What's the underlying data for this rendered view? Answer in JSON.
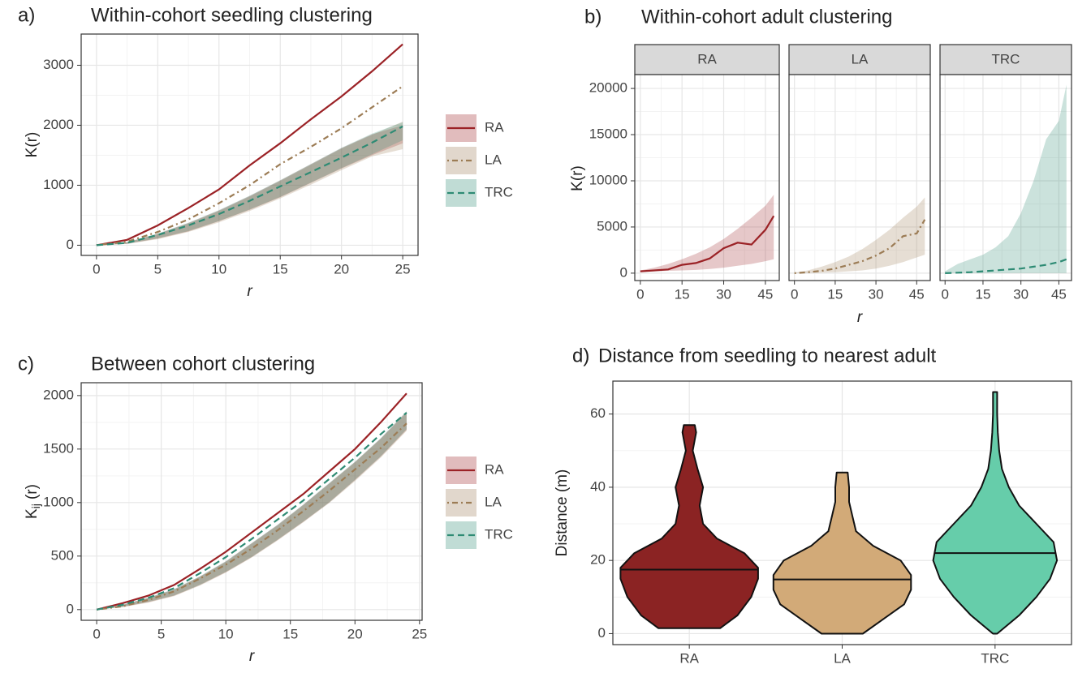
{
  "chart_data": [
    {
      "type": "line",
      "label": "a)",
      "title": "Within-cohort seedling clustering",
      "xlabel": "r",
      "ylabel": "K(r)",
      "x": [
        0,
        2.5,
        5,
        7.5,
        10,
        12.5,
        15,
        17.5,
        20,
        22.5,
        25
      ],
      "series": [
        {
          "name": "RA",
          "color": "#9b2226",
          "dash": "none",
          "values": [
            0,
            90,
            330,
            620,
            930,
            1330,
            1700,
            2100,
            2480,
            2900,
            3350
          ],
          "lower": [
            0,
            25,
            110,
            230,
            400,
            590,
            800,
            1040,
            1280,
            1500,
            1700
          ],
          "upper": [
            0,
            50,
            190,
            370,
            580,
            820,
            1080,
            1350,
            1620,
            1850,
            2000
          ]
        },
        {
          "name": "LA",
          "color": "#9c7c55",
          "dash": "2,4,7,4",
          "values": [
            0,
            60,
            220,
            430,
            700,
            1000,
            1350,
            1640,
            1950,
            2300,
            2650
          ],
          "lower": [
            0,
            20,
            100,
            220,
            380,
            570,
            780,
            1010,
            1250,
            1480,
            1600
          ],
          "upper": [
            0,
            48,
            185,
            360,
            570,
            810,
            1070,
            1340,
            1610,
            1840,
            2060
          ]
        },
        {
          "name": "TRC",
          "color": "#2e8b74",
          "dash": "8,5",
          "values": [
            0,
            40,
            170,
            330,
            520,
            740,
            980,
            1220,
            1460,
            1710,
            1980
          ],
          "lower": [
            0,
            25,
            115,
            235,
            405,
            595,
            805,
            1045,
            1285,
            1515,
            1750
          ],
          "upper": [
            0,
            50,
            195,
            375,
            585,
            825,
            1085,
            1355,
            1625,
            1860,
            2050
          ]
        }
      ],
      "xlim": [
        -1.25,
        26.25
      ],
      "xticks": [
        0,
        5,
        10,
        15,
        20,
        25
      ],
      "ylim": [
        -170,
        3520
      ],
      "yticks": [
        0,
        1000,
        2000,
        3000
      ],
      "grid": true,
      "legend": "right"
    },
    {
      "type": "line",
      "facet": true,
      "label": "b)",
      "title": "Within-cohort adult clustering",
      "xlabel": "r",
      "ylabel": "K(r)",
      "x": [
        0,
        5,
        10,
        15,
        20,
        25,
        30,
        35,
        40,
        45,
        48
      ],
      "series": [
        {
          "name": "RA",
          "color": "#9b2226",
          "dash": "none",
          "values": [
            200,
            300,
            400,
            900,
            1100,
            1600,
            2700,
            3300,
            3100,
            4700,
            6200
          ],
          "lower": [
            150,
            200,
            250,
            300,
            350,
            450,
            600,
            800,
            1000,
            1300,
            1500
          ],
          "upper": [
            300,
            600,
            1000,
            1500,
            2100,
            2800,
            3700,
            4800,
            6000,
            7300,
            8500
          ]
        },
        {
          "name": "LA",
          "color": "#9c7c55",
          "dash": "2,4,7,4",
          "values": [
            0,
            100,
            250,
            500,
            900,
            1300,
            1900,
            2700,
            4000,
            4300,
            5800
          ],
          "lower": [
            0,
            0,
            50,
            100,
            200,
            300,
            500,
            800,
            1200,
            1700,
            2000
          ],
          "upper": [
            50,
            300,
            700,
            1200,
            1800,
            2600,
            3600,
            4700,
            6000,
            7200,
            8200
          ]
        },
        {
          "name": "TRC",
          "color": "#2e8b74",
          "dash": "8,5",
          "values": [
            0,
            50,
            100,
            200,
            300,
            400,
            500,
            700,
            900,
            1200,
            1500
          ],
          "lower": [
            0,
            0,
            0,
            0,
            0,
            0,
            0,
            0,
            0,
            0,
            0
          ],
          "upper": [
            200,
            1000,
            1500,
            2000,
            2800,
            4000,
            6500,
            10000,
            14500,
            16500,
            20400
          ]
        }
      ],
      "xlim": [
        -2,
        50
      ],
      "xticks": [
        0,
        15,
        30,
        45
      ],
      "ylim": [
        -800,
        21500
      ],
      "yticks": [
        0,
        5000,
        10000,
        15000,
        20000
      ],
      "grid": true
    },
    {
      "type": "line",
      "label": "c)",
      "title": "Between cohort clustering",
      "xlabel": "r",
      "ylabel": "K",
      "ylabel_subscript": "ij",
      "ylabel_suffix": "(r)",
      "x": [
        0,
        2,
        4,
        6,
        8,
        10,
        12,
        14,
        16,
        18,
        20,
        22,
        24
      ],
      "series": [
        {
          "name": "RA",
          "color": "#9b2226",
          "dash": "none",
          "values": [
            0,
            60,
            130,
            230,
            380,
            540,
            720,
            900,
            1080,
            1290,
            1500,
            1750,
            2020
          ],
          "lower": [
            0,
            25,
            70,
            130,
            230,
            350,
            490,
            650,
            820,
            1000,
            1210,
            1430,
            1680
          ],
          "upper": [
            0,
            45,
            110,
            190,
            310,
            450,
            620,
            790,
            980,
            1180,
            1380,
            1600,
            1850
          ]
        },
        {
          "name": "LA",
          "color": "#9c7c55",
          "dash": "2,4,7,4",
          "values": [
            0,
            30,
            90,
            170,
            290,
            420,
            570,
            740,
            920,
            1110,
            1310,
            1510,
            1740
          ],
          "lower": [
            0,
            22,
            65,
            125,
            225,
            345,
            485,
            645,
            815,
            995,
            1200,
            1420,
            1670
          ],
          "upper": [
            0,
            42,
            105,
            185,
            305,
            445,
            615,
            785,
            975,
            1175,
            1375,
            1595,
            1840
          ]
        },
        {
          "name": "TRC",
          "color": "#2e8b74",
          "dash": "8,5",
          "values": [
            0,
            45,
            110,
            200,
            340,
            490,
            660,
            840,
            1020,
            1220,
            1420,
            1640,
            1840
          ],
          "lower": [
            0,
            27,
            72,
            132,
            232,
            352,
            492,
            652,
            822,
            1002,
            1212,
            1432,
            1685
          ],
          "upper": [
            0,
            47,
            112,
            192,
            312,
            452,
            622,
            792,
            982,
            1182,
            1382,
            1602,
            1855
          ]
        }
      ],
      "xlim": [
        -1.2,
        25.2
      ],
      "xticks": [
        0,
        5,
        10,
        15,
        20,
        25
      ],
      "ylim": [
        -100,
        2120
      ],
      "yticks": [
        0,
        500,
        1000,
        1500,
        2000
      ],
      "grid": true,
      "legend": "right"
    },
    {
      "type": "violin",
      "label": "d)",
      "title": "Distance from seedling to nearest adult",
      "ylabel": "Distance (m)",
      "categories": [
        "RA",
        "LA",
        "TRC"
      ],
      "colors": [
        "#8b2323",
        "#d2aa78",
        "#66cdaa"
      ],
      "medians": [
        17.5,
        14.8,
        22
      ],
      "profiles": [
        {
          "y": [
            1.5,
            5,
            10,
            15,
            18,
            22,
            26,
            30,
            35,
            40,
            45,
            50,
            55,
            57
          ],
          "width": [
            0.45,
            0.7,
            0.9,
            1.0,
            1.0,
            0.8,
            0.4,
            0.2,
            0.15,
            0.2,
            0.12,
            0.05,
            0.1,
            0.08
          ]
        },
        {
          "y": [
            0,
            4,
            8,
            12,
            16,
            20,
            24,
            28,
            32,
            36,
            40,
            44
          ],
          "width": [
            0.3,
            0.6,
            0.9,
            1.0,
            1.0,
            0.85,
            0.45,
            0.2,
            0.15,
            0.1,
            0.1,
            0.08
          ]
        },
        {
          "y": [
            0,
            5,
            10,
            15,
            20,
            25,
            30,
            35,
            40,
            45,
            50,
            55,
            60,
            66
          ],
          "width": [
            0.03,
            0.35,
            0.6,
            0.8,
            0.9,
            0.85,
            0.6,
            0.35,
            0.2,
            0.1,
            0.06,
            0.04,
            0.03,
            0.03
          ]
        }
      ],
      "ylim": [
        -3,
        69
      ],
      "yticks": [
        0,
        20,
        40,
        60
      ],
      "grid": true
    }
  ]
}
